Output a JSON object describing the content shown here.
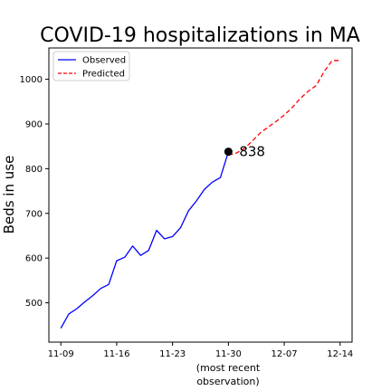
{
  "chart_data": {
    "type": "line",
    "title": "COVID-19 hospitalizations in MA",
    "ylabel": "Beds in use",
    "xlabel_lines": [
      "(most recent",
      "observation)"
    ],
    "xlim": [
      -1.5,
      36.5
    ],
    "ylim": [
      412,
      1070
    ],
    "x_ticks": [
      {
        "x": 0,
        "label": "11-09"
      },
      {
        "x": 7,
        "label": "11-16"
      },
      {
        "x": 14,
        "label": "11-23"
      },
      {
        "x": 21,
        "label": "11-30"
      },
      {
        "x": 28,
        "label": "12-07"
      },
      {
        "x": 35,
        "label": "12-14"
      }
    ],
    "y_ticks": [
      500,
      600,
      700,
      800,
      900,
      1000
    ],
    "series": [
      {
        "name": "Observed",
        "color": "#0000ff",
        "dash": "solid",
        "x": [
          0,
          1,
          2,
          3,
          4,
          5,
          6,
          7,
          8,
          9,
          10,
          11,
          12,
          13,
          14,
          15,
          16,
          17,
          18,
          19,
          20,
          21
        ],
        "y": [
          443,
          475,
          487,
          502,
          516,
          532,
          541,
          594,
          602,
          627,
          606,
          617,
          662,
          643,
          648,
          668,
          706,
          728,
          754,
          770,
          780,
          838
        ]
      },
      {
        "name": "Predicted",
        "color": "#ff0000",
        "dash": "dashed",
        "x": [
          21,
          22,
          23,
          24,
          25,
          26,
          27,
          28,
          29,
          30,
          31,
          32,
          33,
          34,
          35
        ],
        "y": [
          830,
          835,
          845,
          862,
          880,
          893,
          906,
          920,
          937,
          957,
          973,
          986,
          1017,
          1042,
          1042
        ]
      }
    ],
    "highlight_point": {
      "x": 21,
      "y": 838,
      "label": "838"
    },
    "legend": {
      "position": "top-left",
      "entries": [
        "Observed",
        "Predicted"
      ]
    },
    "grid": false
  }
}
